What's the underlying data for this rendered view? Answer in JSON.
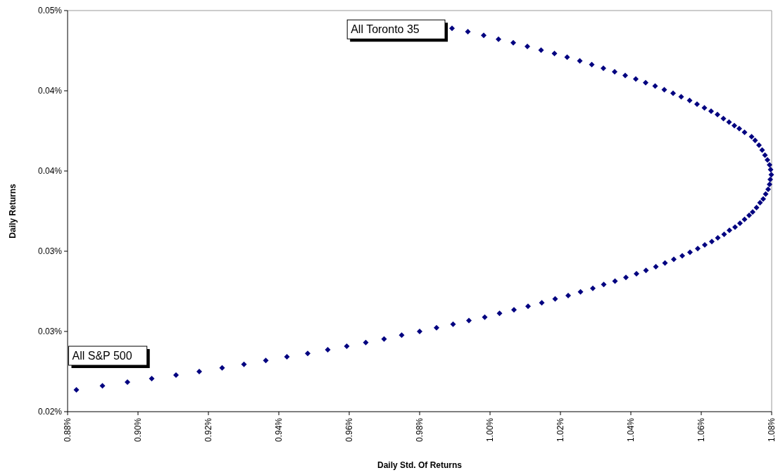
{
  "chart_data": {
    "type": "scatter",
    "xlabel": "Daily Std. Of Returns",
    "ylabel": "Daily Returns",
    "xlim": [
      0.88,
      1.08
    ],
    "ylim": [
      0.02,
      0.05
    ],
    "xticks": [
      {
        "value": 0.88,
        "label": "0.88%"
      },
      {
        "value": 0.9,
        "label": "0.90%"
      },
      {
        "value": 0.92,
        "label": "0.92%"
      },
      {
        "value": 0.94,
        "label": "0.94%"
      },
      {
        "value": 0.96,
        "label": "0.96%"
      },
      {
        "value": 0.98,
        "label": "0.98%"
      },
      {
        "value": 1.0,
        "label": "1.00%"
      },
      {
        "value": 1.02,
        "label": "1.02%"
      },
      {
        "value": 1.04,
        "label": "1.04%"
      },
      {
        "value": 1.06,
        "label": "1.06%"
      },
      {
        "value": 1.08,
        "label": "1.08%"
      }
    ],
    "yticks": [
      {
        "value": 0.02,
        "label": "0.02%"
      },
      {
        "value": 0.026,
        "label": "0.03%"
      },
      {
        "value": 0.032,
        "label": "0.03%"
      },
      {
        "value": 0.038,
        "label": "0.04%"
      },
      {
        "value": 0.044,
        "label": "0.04%"
      },
      {
        "value": 0.05,
        "label": "0.05%"
      }
    ],
    "grid": false,
    "marker": "diamond",
    "annotations": [
      {
        "text": "All S&P 500",
        "x": 0.8825,
        "y": 0.02163
      },
      {
        "text": "All Toronto 35",
        "x": 0.9892,
        "y": 0.04867
      }
    ],
    "series": [
      {
        "color": "#000080",
        "x": [
          0.8825,
          0.8899,
          0.897,
          0.9039,
          0.9108,
          0.9174,
          0.9239,
          0.9301,
          0.9363,
          0.9423,
          0.9482,
          0.9539,
          0.9593,
          0.9647,
          0.9699,
          0.9749,
          0.98,
          0.9848,
          0.9895,
          0.994,
          0.9985,
          1.0027,
          1.0068,
          1.0108,
          1.0147,
          1.0185,
          1.0222,
          1.0257,
          1.0292,
          1.0323,
          1.0355,
          1.0386,
          1.0416,
          1.0443,
          1.0471,
          1.0497,
          1.0522,
          1.0546,
          1.0568,
          1.059,
          1.061,
          1.063,
          1.0647,
          1.0665,
          1.068,
          1.0696,
          1.071,
          1.0723,
          1.0736,
          1.0746,
          1.0757,
          1.0767,
          1.0776,
          1.0783,
          1.079,
          1.0794,
          1.0796,
          1.0799,
          1.0797,
          1.0794,
          1.0788,
          1.0781,
          1.0773,
          1.0764,
          1.0753,
          1.0743,
          1.0723,
          1.0708,
          1.0694,
          1.0679,
          1.0663,
          1.0646,
          1.0628,
          1.0609,
          1.0588,
          1.0567,
          1.0543,
          1.052,
          1.0495,
          1.0469,
          1.0442,
          1.0414,
          1.0384,
          1.0354,
          1.0322,
          1.0289,
          1.0255,
          1.0219,
          1.0183,
          1.0145,
          1.0106,
          1.0066,
          1.0024,
          0.9982,
          0.9937,
          0.9892
        ],
        "values": [
          0.02163,
          0.02193,
          0.02221,
          0.02248,
          0.02274,
          0.023,
          0.02328,
          0.02354,
          0.02383,
          0.02411,
          0.02435,
          0.02463,
          0.0249,
          0.02517,
          0.02544,
          0.02572,
          0.026,
          0.02627,
          0.02654,
          0.02682,
          0.02707,
          0.02735,
          0.02762,
          0.02788,
          0.02815,
          0.02843,
          0.02868,
          0.02896,
          0.02923,
          0.02951,
          0.02976,
          0.03004,
          0.03031,
          0.03057,
          0.03084,
          0.03112,
          0.03139,
          0.03166,
          0.03192,
          0.0322,
          0.03247,
          0.03273,
          0.033,
          0.03326,
          0.03356,
          0.0338,
          0.03409,
          0.03438,
          0.03468,
          0.03493,
          0.03526,
          0.03563,
          0.03591,
          0.03627,
          0.03663,
          0.037,
          0.03737,
          0.03773,
          0.0381,
          0.03846,
          0.03883,
          0.03919,
          0.03956,
          0.03993,
          0.04029,
          0.04057,
          0.0409,
          0.04117,
          0.04139,
          0.04166,
          0.04192,
          0.04222,
          0.04247,
          0.04273,
          0.043,
          0.04327,
          0.04355,
          0.04381,
          0.04408,
          0.04435,
          0.04461,
          0.04488,
          0.04514,
          0.04542,
          0.04569,
          0.04596,
          0.04624,
          0.04651,
          0.04679,
          0.04704,
          0.04732,
          0.04759,
          0.04785,
          0.04814,
          0.04842,
          0.04867
        ]
      }
    ]
  }
}
